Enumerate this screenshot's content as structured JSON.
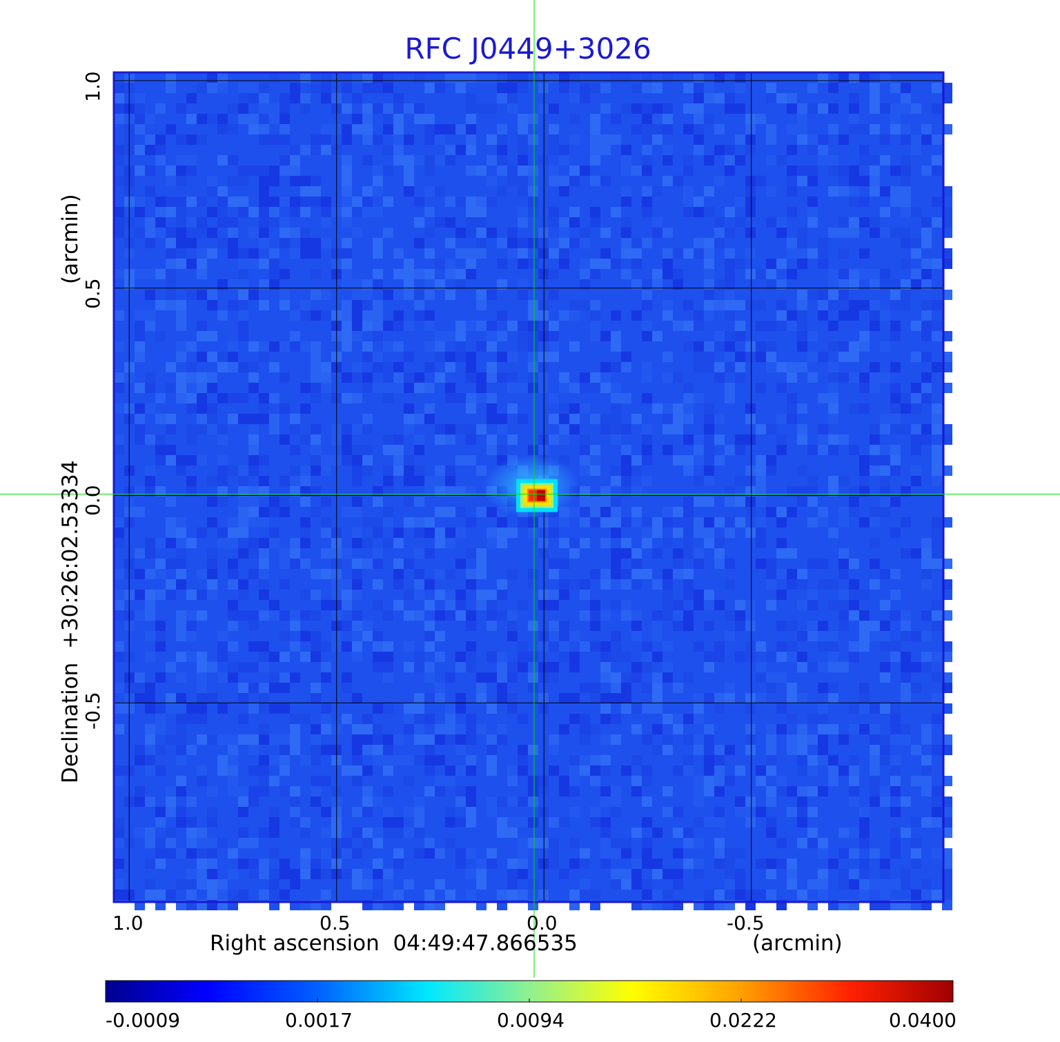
{
  "chart_data": {
    "type": "heatmap",
    "title": "RFC J0449+3026",
    "xlabel": "Right ascension  04:49:47.866535",
    "xunit": "(arcmin)",
    "ylabel": "Declination  +30:26:02.53334",
    "yunit": "(arcmin)",
    "xlim": [
      1.02,
      -0.98
    ],
    "ylim": [
      -0.98,
      1.02
    ],
    "x_ticks": [
      "1.0",
      "0.5",
      "0.0",
      "-0.5"
    ],
    "y_ticks": [
      "1.0",
      "0.5",
      "0.0",
      "-0.5"
    ],
    "grid": true,
    "crosshair": {
      "x": 0.0,
      "y": 0.0
    },
    "colormap": "jet",
    "colorbar": {
      "orientation": "horizontal",
      "ticks": [
        "-0.0009",
        "0.0017",
        "0.0094",
        "0.0222",
        "0.0400"
      ]
    },
    "peak": {
      "x": 0.0,
      "y": 0.0,
      "value": 0.04
    }
  },
  "colors": {
    "title": "#1a1ad0",
    "frame": "#1a1ad0",
    "grid": "#000000",
    "crosshair": "#00e000",
    "background_map": "#1e50ee"
  }
}
